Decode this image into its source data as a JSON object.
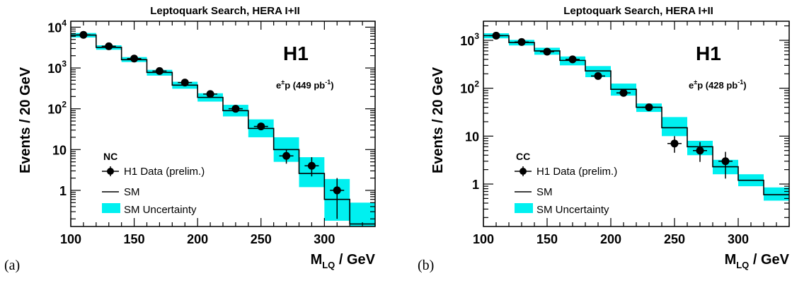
{
  "panels": [
    {
      "label": "(a)"
    },
    {
      "label": "(b)"
    }
  ],
  "chart_data": [
    {
      "type": "line",
      "title": "Leptoquark Search, HERA I+II",
      "xlabel_main": "M",
      "xlabel_sub": "LQ",
      "xlabel_unit": " / GeV",
      "ylabel": "Events / 20 GeV",
      "experiment": "H1",
      "lumi_prefix": "e",
      "lumi_sup": "±",
      "lumi_mid": "p (449 pb",
      "lumi_exp": "-1",
      "lumi_suffix": ")",
      "channel": "NC",
      "legend": {
        "data": "H1 Data (prelim.)",
        "sm": "SM",
        "unc": "SM Uncertainty",
        "position": "bottom-left"
      },
      "xlim": [
        100,
        340
      ],
      "ylim": [
        0.13,
        14000
      ],
      "log_y": true,
      "xticks": [
        "100",
        "150",
        "200",
        "250",
        "300"
      ],
      "yticks": [
        {
          "value": 1,
          "text": "1"
        },
        {
          "value": 10,
          "text": "10"
        },
        {
          "value": 100,
          "base": "10",
          "exp": "2"
        },
        {
          "value": 1000,
          "base": "10",
          "exp": "3"
        },
        {
          "value": 10000,
          "base": "10",
          "exp": "4"
        }
      ],
      "bin_edges": [
        100,
        120,
        140,
        160,
        180,
        200,
        220,
        240,
        260,
        280,
        300,
        320,
        340
      ],
      "sm": [
        6400,
        3200,
        1600,
        780,
        380,
        190,
        90,
        33,
        10,
        2.6,
        0.6,
        0.15
      ],
      "sm_band_low": [
        5600,
        2800,
        1400,
        650,
        310,
        150,
        65,
        20,
        5,
        1.2,
        0.18,
        0.1
      ],
      "sm_band_high": [
        7200,
        3600,
        1850,
        900,
        460,
        240,
        125,
        55,
        20,
        6.5,
        1.9,
        0.5
      ],
      "data_x": [
        110,
        130,
        150,
        170,
        190,
        210,
        230,
        250,
        270,
        290,
        310
      ],
      "data_y": [
        6500,
        3400,
        1700,
        840,
        440,
        230,
        100,
        37,
        7,
        4,
        1
      ],
      "data_err_low": [
        6300,
        3300,
        1650,
        810,
        420,
        215,
        90,
        31,
        4.5,
        2.2,
        0.2
      ],
      "data_err_high": [
        6700,
        3500,
        1750,
        870,
        460,
        245,
        110,
        43,
        10,
        6.5,
        2.0
      ]
    },
    {
      "type": "line",
      "title": "Leptoquark Search, HERA I+II",
      "xlabel_main": "M",
      "xlabel_sub": "LQ",
      "xlabel_unit": " / GeV",
      "ylabel": "Events / 20 GeV",
      "experiment": "H1",
      "lumi_prefix": "e",
      "lumi_sup": "±",
      "lumi_mid": "p (428 pb",
      "lumi_exp": "-1",
      "lumi_suffix": ")",
      "channel": "CC",
      "legend": {
        "data": "H1 Data (prelim.)",
        "sm": "SM",
        "unc": "SM Uncertainty",
        "position": "bottom-left"
      },
      "xlim": [
        100,
        340
      ],
      "ylim": [
        0.13,
        2500
      ],
      "log_y": true,
      "xticks": [
        "100",
        "150",
        "200",
        "250",
        "300"
      ],
      "yticks": [
        {
          "value": 1,
          "text": "1"
        },
        {
          "value": 10,
          "text": "10"
        },
        {
          "value": 100,
          "base": "10",
          "exp": "2"
        },
        {
          "value": 1000,
          "base": "10",
          "exp": "3"
        }
      ],
      "bin_edges": [
        100,
        120,
        140,
        160,
        180,
        200,
        220,
        240,
        260,
        280,
        300,
        320,
        340
      ],
      "sm": [
        1250,
        900,
        600,
        380,
        230,
        95,
        40,
        15,
        6,
        2.3,
        1.2,
        0.6
      ],
      "sm_band_low": [
        1100,
        780,
        500,
        300,
        170,
        70,
        32,
        10,
        4,
        1.6,
        0.9,
        0.45
      ],
      "sm_band_high": [
        1400,
        1020,
        700,
        460,
        290,
        125,
        48,
        25,
        8,
        3.2,
        1.6,
        0.85
      ],
      "data_x": [
        110,
        130,
        150,
        170,
        190,
        210,
        230,
        250,
        270,
        290
      ],
      "data_y": [
        1250,
        920,
        580,
        400,
        180,
        80,
        40,
        7,
        5,
        3
      ],
      "data_err_low": [
        1200,
        890,
        555,
        380,
        165,
        71,
        34,
        4.5,
        2.9,
        1.3
      ],
      "data_err_high": [
        1300,
        950,
        605,
        420,
        195,
        89,
        46,
        10,
        7.5,
        4.7
      ]
    }
  ]
}
